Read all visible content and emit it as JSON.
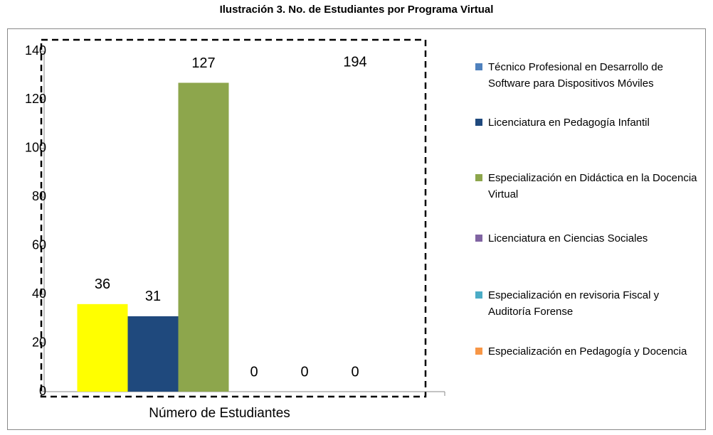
{
  "chart_data": {
    "type": "bar",
    "title": "Ilustración 3. No. de Estudiantes por Programa Virtual",
    "categories": [
      "Número de Estudiantes"
    ],
    "series": [
      {
        "name": "Técnico Profesional en Desarrollo de Software para Dispositivos Móviles",
        "color": "#4f81bd",
        "bar_color": "#ffff00",
        "values": [
          36
        ]
      },
      {
        "name": "Licenciatura en Pedagogía Infantil",
        "color": "#1f497d",
        "values": [
          31
        ]
      },
      {
        "name": "Especialización en Didáctica en la Docencia Virtual",
        "color": "#8da64c",
        "values": [
          127
        ]
      },
      {
        "name": "Licenciatura en Ciencias Sociales",
        "color": "#8064a2",
        "values": [
          0
        ]
      },
      {
        "name": "Especialización en revisoria Fiscal y Auditoría Forense",
        "color": "#4bacc6",
        "values": [
          0
        ]
      },
      {
        "name": "Especialización en Pedagogía y Docencia",
        "color": "#f79646",
        "values": [
          0
        ]
      }
    ],
    "annotation": "194",
    "ylim": [
      0,
      140
    ],
    "yticks": [
      0,
      20,
      40,
      60,
      80,
      100,
      120,
      140
    ],
    "legend": "right"
  }
}
